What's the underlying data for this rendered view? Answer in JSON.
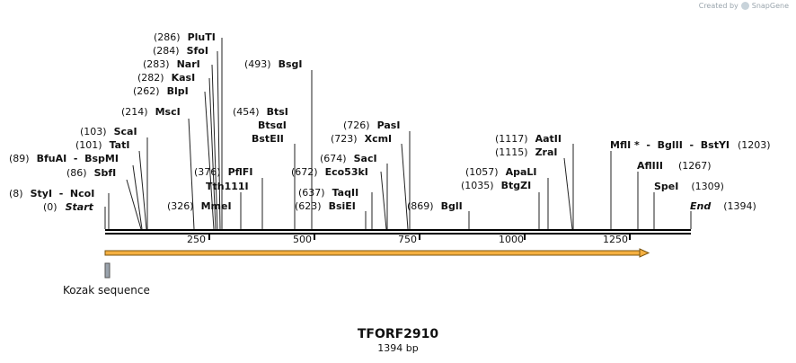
{
  "watermark": {
    "text": "Created by",
    "brand": "SnapGene"
  },
  "map": {
    "name": "TFORF2910",
    "length_label": "1394 bp",
    "length": 1394,
    "ruler_ticks": [
      "250",
      "500",
      "750",
      "1000",
      "1250"
    ],
    "colors": {
      "backbone": "#000000",
      "arrow_fill": "#f5b041",
      "arrow_stroke": "#7a5510",
      "kozak": "#9aa3ad"
    }
  },
  "sites": [
    {
      "pos_label": "(0)",
      "name": "Start",
      "italic": true,
      "bp": 0
    },
    {
      "pos_label": "(8)",
      "name": "StyI  -  NcoI",
      "bp": 8
    },
    {
      "pos_label": "(86)",
      "name": "SbfI",
      "bp": 86
    },
    {
      "pos_label": "(89)",
      "name": "BfuAI  -  BspMI",
      "bp": 89
    },
    {
      "pos_label": "(101)",
      "name": "TatI",
      "bp": 101
    },
    {
      "pos_label": "(103)",
      "name": "ScaI",
      "bp": 103
    },
    {
      "pos_label": "(214)",
      "name": "MscI",
      "bp": 214
    },
    {
      "pos_label": "(262)",
      "name": "BlpI",
      "bp": 262
    },
    {
      "pos_label": "(282)",
      "name": "KasI",
      "bp": 282
    },
    {
      "pos_label": "(283)",
      "name": "NarI",
      "bp": 283
    },
    {
      "pos_label": "(284)",
      "name": "SfoI",
      "bp": 284
    },
    {
      "pos_label": "(286)",
      "name": "PluTI",
      "bp": 286
    },
    {
      "pos_label": "(326)",
      "name": "MmeI",
      "bp": 326
    },
    {
      "pos_label": "",
      "name": "Tth111I",
      "bp": 364
    },
    {
      "pos_label": "(376)",
      "name": "PflFI",
      "bp": 376
    },
    {
      "pos_label": "(454)",
      "name": "BtsI",
      "bp": 454
    },
    {
      "pos_label": "",
      "name": "BtsαI",
      "bp": 454
    },
    {
      "pos_label": "",
      "name": "BstEII",
      "bp": 454
    },
    {
      "pos_label": "(493)",
      "name": "BsgI",
      "bp": 493
    },
    {
      "pos_label": "(623)",
      "name": "BsiEI",
      "bp": 623
    },
    {
      "pos_label": "(637)",
      "name": "TaqII",
      "bp": 637
    },
    {
      "pos_label": "(672)",
      "name": "Eco53kI",
      "bp": 672
    },
    {
      "pos_label": "(674)",
      "name": "SacI",
      "bp": 674
    },
    {
      "pos_label": "(723)",
      "name": "XcmI",
      "bp": 723
    },
    {
      "pos_label": "(726)",
      "name": "PasI",
      "bp": 726
    },
    {
      "pos_label": "(869)",
      "name": "BglI",
      "bp": 869
    },
    {
      "pos_label": "(1035)",
      "name": "BtgZI",
      "bp": 1035
    },
    {
      "pos_label": "(1057)",
      "name": "ApaLI",
      "bp": 1057
    },
    {
      "pos_label": "(1115)",
      "name": "ZraI",
      "bp": 1115
    },
    {
      "pos_label": "(1117)",
      "name": "AatII",
      "bp": 1117
    },
    {
      "pos_label": "(1203)",
      "name": "MflI *  -  BglII  -  BstYI",
      "bp": 1203
    },
    {
      "pos_label": "(1267)",
      "name": "AflIII",
      "bp": 1267
    },
    {
      "pos_label": "(1309)",
      "name": "SpeI",
      "bp": 1309
    },
    {
      "pos_label": "(1394)",
      "name": "End",
      "italic": true,
      "bp": 1394
    }
  ],
  "features": [
    {
      "name": "TFORF2910 orf",
      "type": "orf",
      "start": 0,
      "end": 1293
    },
    {
      "name": "Kozak sequence",
      "type": "misc",
      "start": 0,
      "end": 10
    }
  ],
  "kozak_label": "Kozak sequence"
}
